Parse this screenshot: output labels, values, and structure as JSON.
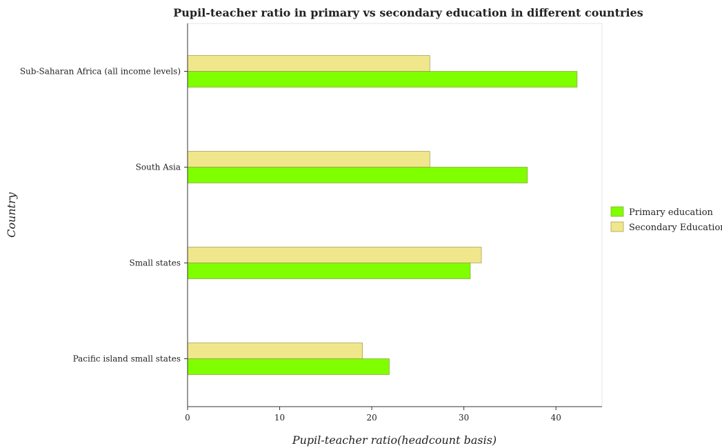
{
  "chart_data": {
    "type": "bar",
    "orientation": "horizontal",
    "title": "Pupil-teacher ratio in primary vs secondary education in different countries",
    "xlabel": "Pupil-teacher ratio(headcount basis)",
    "ylabel": "Country",
    "xlim": [
      0,
      45
    ],
    "xticks": [
      0,
      10,
      20,
      30,
      40
    ],
    "categories": [
      "Pacific island small states",
      "Small states",
      "South Asia",
      "Sub-Saharan Africa (all income levels)"
    ],
    "series": [
      {
        "name": "Primary education",
        "color": "#7fff00",
        "values": [
          21.9,
          30.7,
          36.9,
          42.3
        ]
      },
      {
        "name": "Secondary Education",
        "color": "#f0e68c",
        "values": [
          19.0,
          31.9,
          26.3,
          26.3
        ]
      }
    ],
    "legend_position": "right",
    "grid": false
  }
}
